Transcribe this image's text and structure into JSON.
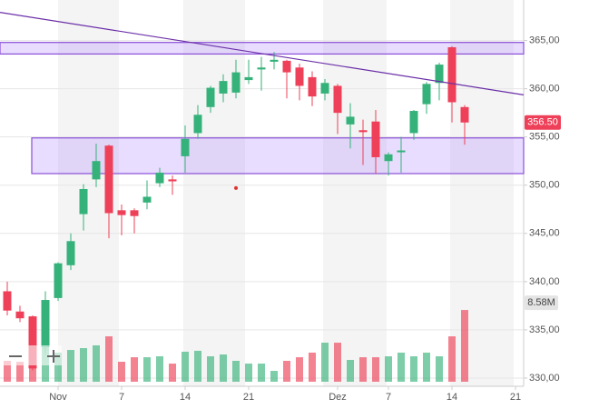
{
  "chart_data": {
    "type": "candlestick",
    "categories": [
      null,
      null,
      null,
      null,
      "Nov",
      null,
      null,
      null,
      null,
      "7",
      null,
      null,
      null,
      null,
      "14",
      null,
      null,
      null,
      null,
      "21",
      null,
      null,
      null,
      null,
      null,
      null,
      "Dez",
      null,
      null,
      null,
      "7",
      null,
      null,
      null,
      null,
      "14",
      null,
      null,
      null,
      null,
      "21"
    ],
    "open": [
      339,
      336.9,
      336.4,
      333.2,
      338.3,
      341.7,
      347,
      350.6,
      354.1,
      347.4,
      347.4,
      348.2,
      350.2,
      350.6,
      353,
      355.4,
      358.1,
      359.5,
      359.6,
      360.9,
      362,
      362.8,
      362.9,
      362.2,
      361.2,
      359.5,
      360.3,
      356.3,
      355.7,
      356.6,
      352.5,
      353.5,
      355.4,
      358.4,
      360.6,
      364.3,
      358.1,
      null,
      null,
      null,
      null
    ],
    "high": [
      340,
      337.5,
      336.5,
      339,
      342,
      345,
      350.1,
      354.3,
      354.2,
      348,
      347.6,
      350.5,
      351.8,
      351,
      356.2,
      358.3,
      360.3,
      361.5,
      363,
      363,
      363.3,
      363.8,
      363,
      362.6,
      361.8,
      361,
      360.5,
      358.5,
      356.8,
      357.8,
      353.4,
      355,
      357.8,
      360.7,
      362.7,
      364.4,
      358.3,
      null,
      null,
      null,
      null
    ],
    "low": [
      336.5,
      335.8,
      330.8,
      332.5,
      338,
      341.2,
      345.3,
      349.8,
      344.5,
      344.8,
      345,
      347.5,
      349.8,
      349,
      351.3,
      354.8,
      357.5,
      358.6,
      359,
      360.5,
      359.8,
      362,
      359,
      358.8,
      358.2,
      358.8,
      355.3,
      353.8,
      352.1,
      351.2,
      351,
      351.3,
      354.7,
      357.4,
      358.8,
      356.5,
      354.2,
      null,
      null,
      null,
      null
    ],
    "close": [
      337,
      336.2,
      331,
      338.1,
      341.9,
      344.2,
      349.6,
      352.5,
      347.1,
      346.9,
      346.8,
      348.8,
      351.3,
      350.4,
      354.8,
      357.3,
      360.1,
      360.8,
      361.7,
      361.2,
      362.2,
      363,
      361.7,
      360.3,
      359.2,
      360.6,
      357.5,
      357.1,
      355.5,
      352.9,
      353.2,
      353.6,
      357.7,
      360.5,
      362.5,
      358.6,
      356.5,
      null,
      null,
      null,
      null
    ],
    "price_label": "356.50",
    "volume": [
      2.5,
      2.39,
      4.13,
      4.57,
      3.48,
      3.8,
      4.02,
      4.35,
      5.43,
      2.39,
      2.93,
      2.93,
      3.04,
      2.17,
      3.59,
      3.7,
      3.04,
      3.26,
      2.5,
      2.17,
      2.17,
      1.3,
      2.5,
      2.93,
      3.48,
      4.67,
      4.67,
      2.61,
      2.93,
      2.93,
      3.04,
      3.48,
      3.04,
      3.48,
      3.04,
      5.43,
      8.58,
      null,
      null,
      null,
      null
    ],
    "volume_label": "8.58M",
    "ylim": [
      329.15,
      369.2
    ],
    "yticks": [
      {
        "value": 330,
        "label": "330,00"
      },
      {
        "value": 335,
        "label": "335,00"
      },
      {
        "value": 340,
        "label": "340,00"
      },
      {
        "value": 345,
        "label": "345,00"
      },
      {
        "value": 350,
        "label": "350,00"
      },
      {
        "value": 355,
        "label": "355,00"
      },
      {
        "value": 360,
        "label": "360,00"
      },
      {
        "value": 365,
        "label": "365,00"
      }
    ],
    "grid": true,
    "up_color": "#35b27a",
    "down_color": "#ee4058",
    "zones": [
      {
        "from": 363.6,
        "to": 364.8
      },
      {
        "from": 351.2,
        "to": 354.9,
        "start": 2
      }
    ],
    "trendline": {
      "x": [
        0,
        40
      ],
      "values": [
        367.8,
        359.5
      ]
    },
    "marker": {
      "x": 18,
      "value": 349.7
    }
  }
}
